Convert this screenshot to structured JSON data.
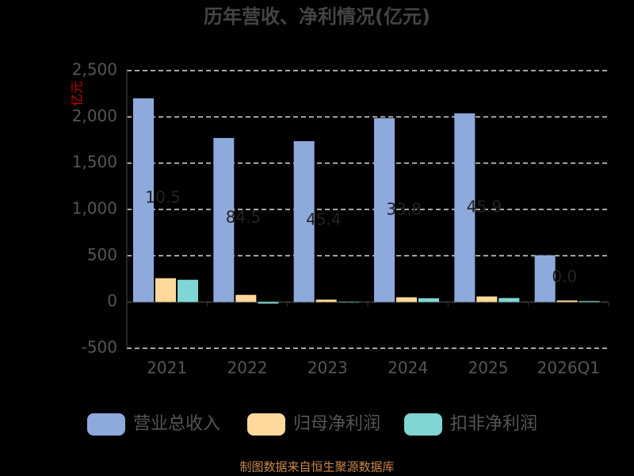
{
  "chart_data": {
    "type": "bar",
    "title": "历年营收、净利情况(亿元)",
    "y_axis_label": "亿元",
    "categories": [
      "2021",
      "2022",
      "2023",
      "2024",
      "2025",
      "2026Q1"
    ],
    "series": [
      {
        "name": "营业总收入",
        "color": "#8eaadc",
        "values": [
          2200,
          1772,
          1738,
          1986,
          2038,
          505
        ]
      },
      {
        "name": "归母净利润",
        "color": "#ffd89b",
        "values": [
          257,
          77,
          26,
          51,
          60,
          17
        ]
      },
      {
        "name": "扣非净利润",
        "color": "#80d6d4",
        "values": [
          240,
          -17,
          -5,
          40,
          43,
          10
        ]
      }
    ],
    "annotations": [
      "10.5",
      "84.5",
      "45.4",
      "33.8",
      "45.9",
      "0.0"
    ],
    "ylim": [
      -500,
      2500
    ],
    "yticks": [
      -500,
      0,
      500,
      {
        "value": 1000,
        "label": "1,000"
      },
      {
        "value": 1500,
        "label": "1,500"
      },
      {
        "value": 2000,
        "label": "2,000"
      },
      {
        "value": 2500,
        "label": "2,500"
      }
    ],
    "grid": true,
    "footer": "制图数据来自恒生聚源数据库"
  }
}
